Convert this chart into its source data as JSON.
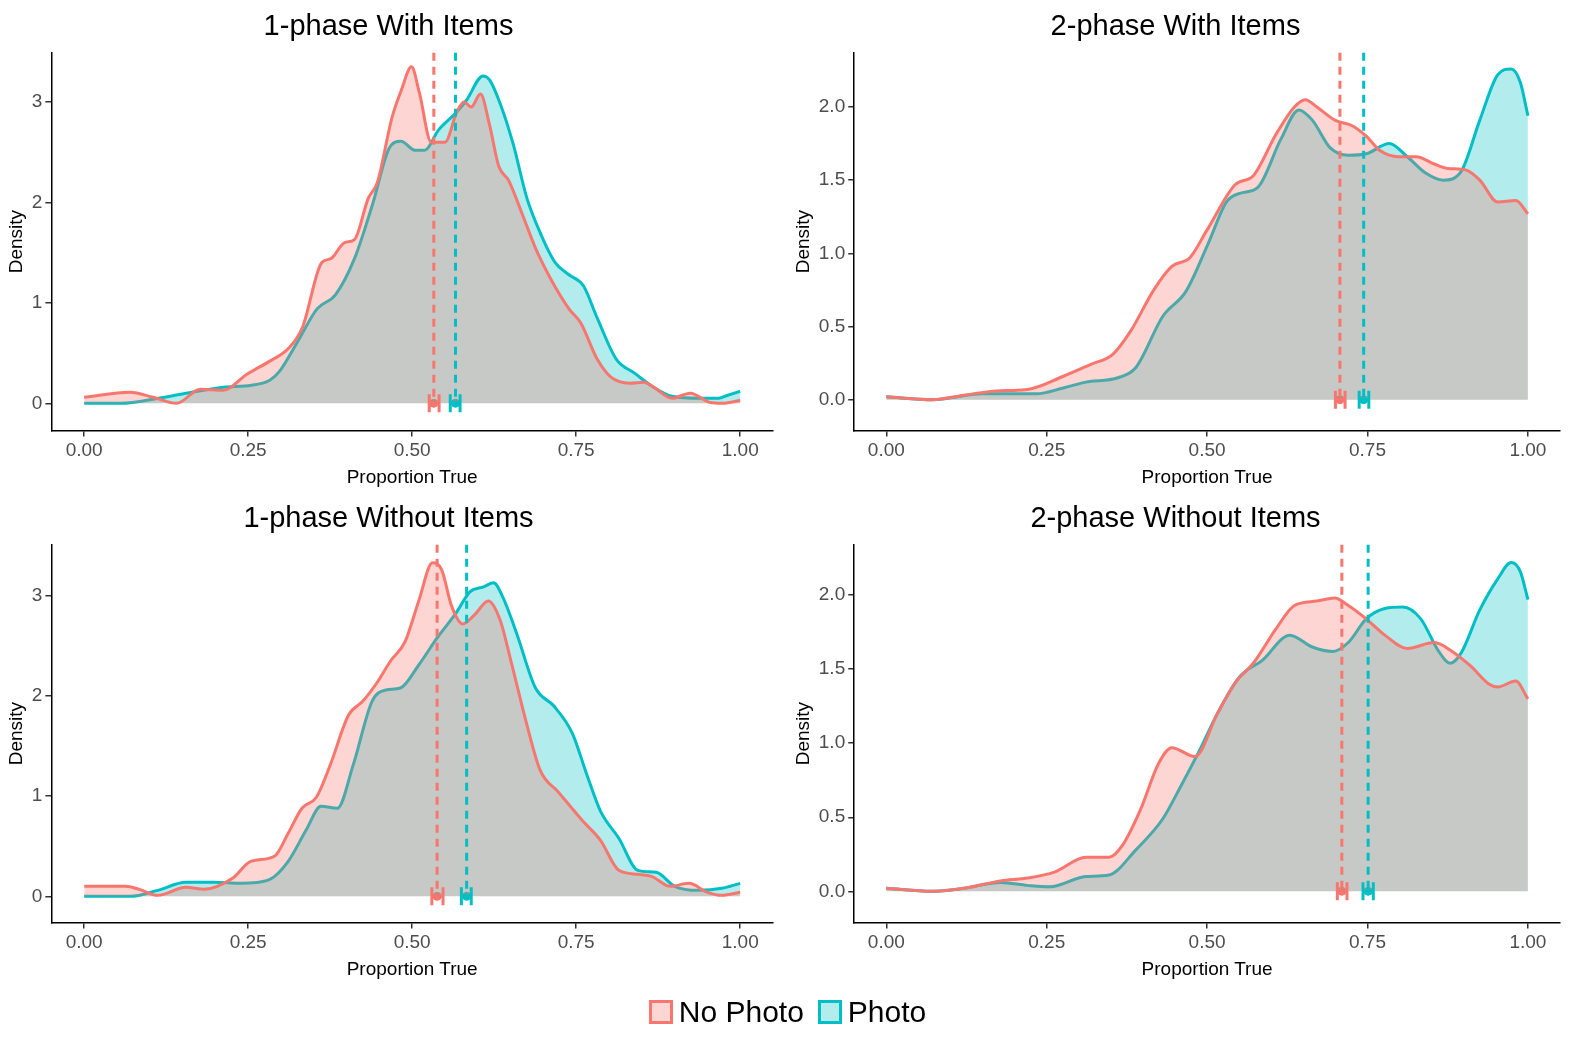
{
  "chart_data": [
    {
      "type": "area",
      "title": "1-phase With Items",
      "xlabel": "Proportion True",
      "ylabel": "Density",
      "legend": "bottom",
      "xlim": [
        -0.05,
        1.05
      ],
      "xticks": [
        {
          "value": 0,
          "label": "0.00"
        },
        {
          "value": 0.25,
          "label": "0.25"
        },
        {
          "value": 0.5,
          "label": "0.50"
        },
        {
          "value": 0.75,
          "label": "0.75"
        },
        {
          "value": 1,
          "label": "1.00"
        }
      ],
      "ylim": [
        -0.27,
        3.49
      ],
      "yticks": [
        0,
        1,
        2,
        3
      ],
      "series": [
        {
          "name": "No Photo",
          "color": "#f8766d",
          "x": [
            0,
            0.07,
            0.105,
            0.141,
            0.177,
            0.212,
            0.248,
            0.283,
            0.312,
            0.333,
            0.362,
            0.376,
            0.397,
            0.412,
            0.433,
            0.447,
            0.469,
            0.483,
            0.499,
            0.511,
            0.529,
            0.55,
            0.568,
            0.579,
            0.59,
            0.604,
            0.618,
            0.632,
            0.647,
            0.668,
            0.689,
            0.711,
            0.739,
            0.757,
            0.782,
            0.803,
            0.832,
            0.853,
            0.868,
            0.896,
            0.924,
            0.953,
            0.974,
            1
          ],
          "values": [
            0.06,
            0.11,
            0.06,
            0,
            0.14,
            0.13,
            0.29,
            0.42,
            0.55,
            0.76,
            1.4,
            1.44,
            1.6,
            1.63,
            2.04,
            2.2,
            2.84,
            3.11,
            3.35,
            3.09,
            2.6,
            2.6,
            2.9,
            3.0,
            2.95,
            3.08,
            2.77,
            2.36,
            2.22,
            1.88,
            1.53,
            1.24,
            0.94,
            0.8,
            0.44,
            0.26,
            0.2,
            0.21,
            0.16,
            0.05,
            0.1,
            0.01,
            0,
            0.03
          ]
        },
        {
          "name": "Photo",
          "color": "#00bfc4",
          "x": [
            0,
            0.056,
            0.113,
            0.155,
            0.212,
            0.255,
            0.283,
            0.298,
            0.326,
            0.355,
            0.383,
            0.412,
            0.44,
            0.465,
            0.483,
            0.504,
            0.519,
            0.54,
            0.568,
            0.583,
            0.608,
            0.618,
            0.636,
            0.654,
            0.675,
            0.697,
            0.718,
            0.739,
            0.761,
            0.782,
            0.811,
            0.839,
            0.868,
            0.896,
            0.939,
            0.967,
            0.981,
            1
          ],
          "values": [
            0,
            0,
            0.05,
            0.1,
            0.16,
            0.18,
            0.23,
            0.32,
            0.62,
            0.94,
            1.08,
            1.44,
            1.99,
            2.54,
            2.61,
            2.52,
            2.52,
            2.72,
            2.9,
            3.02,
            3.26,
            3.22,
            2.95,
            2.58,
            2.04,
            1.67,
            1.4,
            1.28,
            1.17,
            0.85,
            0.44,
            0.3,
            0.16,
            0.07,
            0.05,
            0.05,
            0.08,
            0.12
          ]
        },
        {
          "type": "scatter",
          "color": "#f8766d",
          "x": [
            0.533
          ],
          "values": [
            0
          ],
          "xerrors": [
            [
              0.526,
              0.541
            ]
          ]
        },
        {
          "type": "scatter",
          "color": "#00bfc4",
          "x": [
            0.566
          ],
          "values": [
            0
          ],
          "xerrors": [
            [
              0.558,
              0.573
            ]
          ]
        }
      ],
      "ref_lines": [
        {
          "axis": "x",
          "value": 0.533,
          "color": "#f8766d",
          "line_style": "dashed"
        },
        {
          "axis": "x",
          "value": 0.566,
          "color": "#00bfc4",
          "line_style": "dashed"
        }
      ]
    },
    {
      "type": "area",
      "title": "2-phase With Items",
      "xlabel": "Proportion True",
      "ylabel": "Density",
      "xlim": [
        -0.05,
        1.05
      ],
      "xticks": [
        {
          "value": 0,
          "label": "0.00"
        },
        {
          "value": 0.25,
          "label": "0.25"
        },
        {
          "value": 0.5,
          "label": "0.50"
        },
        {
          "value": 0.75,
          "label": "0.75"
        },
        {
          "value": 1,
          "label": "1.00"
        }
      ],
      "ylim": [
        -0.21,
        2.37
      ],
      "yticks": [
        {
          "value": 0,
          "label": "0.0"
        },
        {
          "value": 0.5,
          "label": "0.5"
        },
        {
          "value": 1,
          "label": "1.0"
        },
        {
          "value": 1.5,
          "label": "1.5"
        },
        {
          "value": 2,
          "label": "2.0"
        }
      ],
      "series": [
        {
          "color": "#f8766d",
          "x": [
            0,
            0.072,
            0.121,
            0.171,
            0.22,
            0.276,
            0.318,
            0.353,
            0.381,
            0.417,
            0.445,
            0.473,
            0.5,
            0.544,
            0.572,
            0.607,
            0.636,
            0.653,
            0.671,
            0.699,
            0.727,
            0.748,
            0.77,
            0.798,
            0.826,
            0.854,
            0.875,
            0.903,
            0.925,
            0.953,
            0.981,
            1
          ],
          "values": [
            0.02,
            0,
            0.03,
            0.06,
            0.07,
            0.16,
            0.24,
            0.31,
            0.47,
            0.75,
            0.91,
            0.97,
            1.16,
            1.47,
            1.53,
            1.81,
            2.0,
            2.05,
            2.0,
            1.91,
            1.87,
            1.8,
            1.7,
            1.66,
            1.66,
            1.61,
            1.58,
            1.57,
            1.5,
            1.35,
            1.36,
            1.27
          ]
        },
        {
          "color": "#00bfc4",
          "x": [
            0,
            0.072,
            0.149,
            0.234,
            0.276,
            0.311,
            0.361,
            0.389,
            0.431,
            0.467,
            0.502,
            0.53,
            0.551,
            0.579,
            0.615,
            0.643,
            0.664,
            0.692,
            0.72,
            0.748,
            0.784,
            0.812,
            0.84,
            0.868,
            0.896,
            0.925,
            0.953,
            0.974,
            0.988,
            1
          ],
          "values": [
            0.02,
            0,
            0.04,
            0.04,
            0.08,
            0.12,
            0.15,
            0.22,
            0.57,
            0.74,
            1.07,
            1.35,
            1.41,
            1.45,
            1.78,
            1.98,
            1.91,
            1.72,
            1.67,
            1.68,
            1.75,
            1.66,
            1.55,
            1.5,
            1.56,
            1.91,
            2.22,
            2.26,
            2.17,
            1.94
          ]
        },
        {
          "type": "scatter",
          "color": "#f8766d",
          "x": [
            0.707
          ],
          "values": [
            0
          ],
          "xerrors": [
            [
              0.7,
              0.715
            ]
          ]
        },
        {
          "type": "scatter",
          "color": "#00bfc4",
          "x": [
            0.744
          ],
          "values": [
            0
          ],
          "xerrors": [
            [
              0.737,
              0.752
            ]
          ]
        }
      ],
      "ref_lines": [
        {
          "axis": "x",
          "value": 0.707,
          "color": "#f8766d",
          "line_style": "dashed"
        },
        {
          "axis": "x",
          "value": 0.744,
          "color": "#00bfc4",
          "line_style": "dashed"
        }
      ]
    },
    {
      "type": "area",
      "title": "1-phase Without Items",
      "xlabel": "Proportion True",
      "ylabel": "Density",
      "xlim": [
        -0.05,
        1.05
      ],
      "xticks": [
        {
          "value": 0,
          "label": "0.00"
        },
        {
          "value": 0.25,
          "label": "0.25"
        },
        {
          "value": 0.5,
          "label": "0.50"
        },
        {
          "value": 0.75,
          "label": "0.75"
        },
        {
          "value": 1,
          "label": "1.00"
        }
      ],
      "ylim": [
        -0.26,
        3.51
      ],
      "yticks": [
        0,
        1,
        2,
        3
      ],
      "series": [
        {
          "color": "#f8766d",
          "x": [
            0,
            0.063,
            0.084,
            0.112,
            0.155,
            0.183,
            0.226,
            0.254,
            0.29,
            0.311,
            0.332,
            0.354,
            0.375,
            0.403,
            0.425,
            0.446,
            0.467,
            0.489,
            0.51,
            0.531,
            0.545,
            0.56,
            0.577,
            0.595,
            0.616,
            0.634,
            0.652,
            0.673,
            0.695,
            0.723,
            0.759,
            0.787,
            0.815,
            0.844,
            0.865,
            0.893,
            0.922,
            0.95,
            0.972,
            1
          ],
          "values": [
            0.1,
            0.1,
            0.07,
            0.01,
            0.09,
            0.07,
            0.18,
            0.35,
            0.4,
            0.63,
            0.88,
            0.99,
            1.31,
            1.81,
            1.95,
            2.13,
            2.35,
            2.54,
            2.95,
            3.33,
            3.26,
            2.9,
            2.72,
            2.81,
            2.95,
            2.76,
            2.31,
            1.76,
            1.26,
            1.04,
            0.76,
            0.56,
            0.26,
            0.22,
            0.2,
            0.1,
            0.13,
            0.04,
            0.01,
            0.04
          ]
        },
        {
          "color": "#00bfc4",
          "x": [
            0,
            0.07,
            0.112,
            0.155,
            0.197,
            0.24,
            0.283,
            0.311,
            0.339,
            0.361,
            0.386,
            0.41,
            0.439,
            0.46,
            0.482,
            0.51,
            0.538,
            0.567,
            0.588,
            0.609,
            0.624,
            0.638,
            0.659,
            0.688,
            0.716,
            0.744,
            0.766,
            0.787,
            0.815,
            0.844,
            0.872,
            0.9,
            0.936,
            0.972,
            1
          ],
          "values": [
            0,
            0,
            0.06,
            0.14,
            0.14,
            0.13,
            0.17,
            0.35,
            0.67,
            0.9,
            0.88,
            1.31,
            1.95,
            2.06,
            2.08,
            2.31,
            2.58,
            2.83,
            3.04,
            3.09,
            3.13,
            2.99,
            2.63,
            2.08,
            1.9,
            1.63,
            1.22,
            0.85,
            0.58,
            0.26,
            0.24,
            0.1,
            0.06,
            0.08,
            0.13
          ]
        },
        {
          "type": "scatter",
          "color": "#f8766d",
          "x": [
            0.538
          ],
          "values": [
            0
          ],
          "xerrors": [
            [
              0.53,
              0.547
            ]
          ]
        },
        {
          "type": "scatter",
          "color": "#00bfc4",
          "x": [
            0.583
          ],
          "values": [
            0
          ],
          "xerrors": [
            [
              0.575,
              0.59
            ]
          ]
        }
      ],
      "ref_lines": [
        {
          "axis": "x",
          "value": 0.538,
          "color": "#f8766d",
          "line_style": "dashed"
        },
        {
          "axis": "x",
          "value": 0.583,
          "color": "#00bfc4",
          "line_style": "dashed"
        }
      ]
    },
    {
      "type": "area",
      "title": "2-phase Without Items",
      "xlabel": "Proportion True",
      "ylabel": "Density",
      "xlim": [
        -0.05,
        1.05
      ],
      "xticks": [
        {
          "value": 0,
          "label": "0.00"
        },
        {
          "value": 0.25,
          "label": "0.25"
        },
        {
          "value": 0.5,
          "label": "0.50"
        },
        {
          "value": 0.75,
          "label": "0.75"
        },
        {
          "value": 1,
          "label": "1.00"
        }
      ],
      "ylim": [
        -0.21,
        2.34
      ],
      "yticks": [
        {
          "value": 0,
          "label": "0.0"
        },
        {
          "value": 0.5,
          "label": "0.5"
        },
        {
          "value": 1,
          "label": "1.0"
        },
        {
          "value": 1.5,
          "label": "1.5"
        },
        {
          "value": 2,
          "label": "2.0"
        }
      ],
      "series": [
        {
          "color": "#f8766d",
          "x": [
            0,
            0.072,
            0.121,
            0.178,
            0.22,
            0.262,
            0.311,
            0.347,
            0.368,
            0.396,
            0.424,
            0.445,
            0.481,
            0.516,
            0.544,
            0.572,
            0.607,
            0.636,
            0.671,
            0.699,
            0.72,
            0.748,
            0.777,
            0.812,
            0.854,
            0.882,
            0.911,
            0.939,
            0.953,
            0.981,
            1
          ],
          "values": [
            0.02,
            0,
            0.02,
            0.07,
            0.09,
            0.13,
            0.23,
            0.23,
            0.31,
            0.55,
            0.86,
            0.97,
            0.91,
            1.2,
            1.41,
            1.54,
            1.77,
            1.93,
            1.96,
            1.98,
            1.93,
            1.84,
            1.73,
            1.64,
            1.68,
            1.62,
            1.52,
            1.4,
            1.38,
            1.42,
            1.3
          ]
        },
        {
          "color": "#00bfc4",
          "x": [
            0,
            0.072,
            0.121,
            0.178,
            0.22,
            0.255,
            0.311,
            0.347,
            0.389,
            0.431,
            0.459,
            0.488,
            0.516,
            0.551,
            0.586,
            0.629,
            0.664,
            0.696,
            0.72,
            0.748,
            0.777,
            0.805,
            0.833,
            0.861,
            0.879,
            0.896,
            0.925,
            0.953,
            0.974,
            0.988,
            1
          ],
          "values": [
            0.02,
            0,
            0.02,
            0.06,
            0.04,
            0.03,
            0.1,
            0.11,
            0.28,
            0.49,
            0.71,
            0.95,
            1.2,
            1.45,
            1.56,
            1.73,
            1.65,
            1.62,
            1.68,
            1.84,
            1.91,
            1.92,
            1.84,
            1.62,
            1.54,
            1.61,
            1.9,
            2.11,
            2.22,
            2.16,
            1.97
          ]
        },
        {
          "type": "scatter",
          "color": "#f8766d",
          "x": [
            0.71
          ],
          "values": [
            0
          ],
          "xerrors": [
            [
              0.703,
              0.718
            ]
          ]
        },
        {
          "type": "scatter",
          "color": "#00bfc4",
          "x": [
            0.751
          ],
          "values": [
            0
          ],
          "xerrors": [
            [
              0.743,
              0.759
            ]
          ]
        }
      ],
      "ref_lines": [
        {
          "axis": "x",
          "value": 0.71,
          "color": "#f8766d",
          "line_style": "dashed"
        },
        {
          "axis": "x",
          "value": 0.751,
          "color": "#00bfc4",
          "line_style": "dashed"
        }
      ]
    }
  ]
}
